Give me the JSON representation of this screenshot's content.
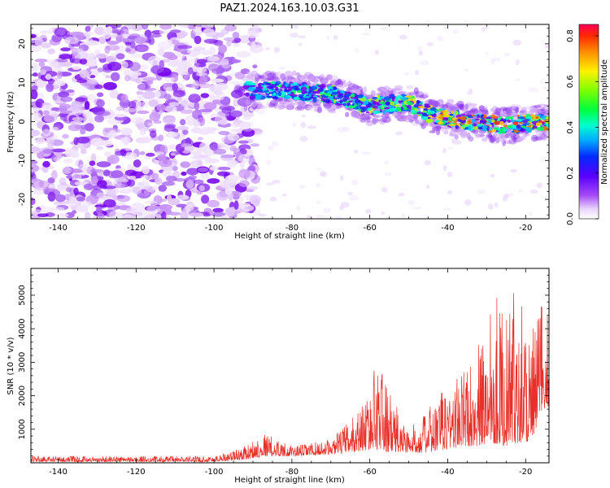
{
  "title": "PAZ1.2024.163.10.03.G31",
  "chart_data": [
    {
      "type": "heatmap",
      "title": "PAZ1.2024.163.10.03.G31",
      "xlabel": "Height of straight line (km)",
      "ylabel": "Frequency (Hz)",
      "xlim": [
        -147,
        -14
      ],
      "ylim": [
        -25,
        25
      ],
      "xticks": [
        "-140",
        "-120",
        "-100",
        "-80",
        "-60",
        "-40",
        "-20"
      ],
      "yticks": [
        "20",
        "10",
        "0",
        "-10",
        "-20"
      ],
      "colorbar": {
        "label": "Normalized spectral amplitude",
        "range": [
          0.0,
          0.85
        ],
        "ticks": [
          "0.0",
          "0.2",
          "0.4",
          "0.6",
          "0.8"
        ],
        "colormap": "gist_rainbow (white at low values)"
      },
      "features": {
        "noise_region_km": [
          -147,
          -92
        ],
        "signal_track": [
          {
            "x": -92,
            "y": 8
          },
          {
            "x": -80,
            "y": 8
          },
          {
            "x": -70,
            "y": 7
          },
          {
            "x": -60,
            "y": 4
          },
          {
            "x": -50,
            "y": 5
          },
          {
            "x": -45,
            "y": 2
          },
          {
            "x": -35,
            "y": 0
          },
          {
            "x": -25,
            "y": -1
          },
          {
            "x": -14,
            "y": 0
          }
        ]
      }
    },
    {
      "type": "line",
      "xlabel": "Height of straight line (km)",
      "ylabel": "SNR (10 * v/v)",
      "xlim": [
        -147,
        -14
      ],
      "ylim": [
        0,
        5800
      ],
      "xticks": [
        "-140",
        "-120",
        "-100",
        "-80",
        "-60",
        "-40",
        "-20"
      ],
      "yticks": [
        "1000",
        "2000",
        "3000",
        "4000",
        "5000"
      ],
      "color": "#e8302a",
      "envelope": [
        {
          "x": -147,
          "low": 30,
          "high": 200
        },
        {
          "x": -100,
          "low": 30,
          "high": 200
        },
        {
          "x": -92,
          "low": 100,
          "high": 500
        },
        {
          "x": -87,
          "low": 200,
          "high": 900
        },
        {
          "x": -80,
          "low": 200,
          "high": 500
        },
        {
          "x": -70,
          "low": 250,
          "high": 700
        },
        {
          "x": -65,
          "low": 300,
          "high": 1300
        },
        {
          "x": -60,
          "low": 400,
          "high": 2100
        },
        {
          "x": -58,
          "low": 400,
          "high": 3400
        },
        {
          "x": -55,
          "low": 300,
          "high": 2100
        },
        {
          "x": -50,
          "low": 300,
          "high": 1000
        },
        {
          "x": -45,
          "low": 300,
          "high": 1600
        },
        {
          "x": -40,
          "low": 400,
          "high": 2400
        },
        {
          "x": -35,
          "low": 500,
          "high": 2900
        },
        {
          "x": -30,
          "low": 500,
          "high": 4000
        },
        {
          "x": -29,
          "low": 600,
          "high": 5800
        },
        {
          "x": -25,
          "low": 500,
          "high": 4300
        },
        {
          "x": -22,
          "low": 600,
          "high": 5600
        },
        {
          "x": -18,
          "low": 600,
          "high": 4000
        },
        {
          "x": -16,
          "low": 1500,
          "high": 5000
        },
        {
          "x": -14,
          "low": 1700,
          "high": 4300
        }
      ]
    }
  ]
}
